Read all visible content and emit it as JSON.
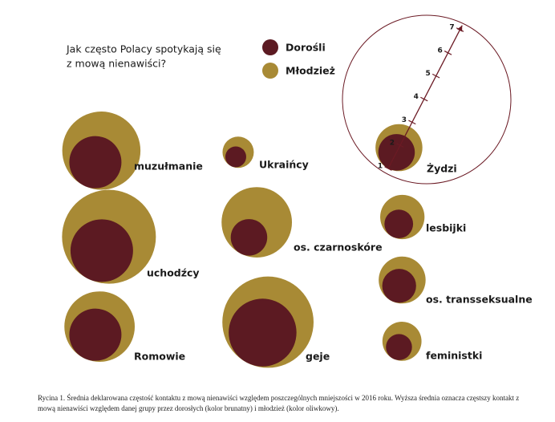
{
  "chart_data": {
    "type": "nested-bubble",
    "title": [
      "Jak często Polacy spotykają się",
      "z mową nienawiści?"
    ],
    "categories": [
      "muzułmanie",
      "Ukraińcy",
      "Żydzi",
      "uchodźcy",
      "os. czarnoskóre",
      "lesbijki",
      "Romowie",
      "geje",
      "os. transseksualne",
      "feministki"
    ],
    "series": [
      {
        "name": "Dorośli",
        "color": "#5c1a22",
        "values": [
          3.0,
          1.8,
          2.4,
          3.4,
          2.4,
          2.1,
          3.0,
          3.6,
          2.3,
          2.0
        ]
      },
      {
        "name": "Młodzież",
        "color": "#a88a35",
        "values": [
          4.0,
          2.2,
          2.8,
          4.6,
          3.7,
          2.7,
          3.7,
          4.5,
          2.8,
          2.5
        ]
      }
    ],
    "size_ticks": [
      1,
      2,
      3,
      4,
      5,
      6,
      7
    ],
    "caption": "Rycina 1. Średnia deklarowana częstość kontaktu z mową nienawiści względem poszczególnych mniejszości w 2016 roku. Wyższa średnia oznacza częstszy kontakt z mową nienawiści względem danej grupy przez dorosłych (kolor brunatny) i młodzież (kolor oliwkowy)."
  }
}
